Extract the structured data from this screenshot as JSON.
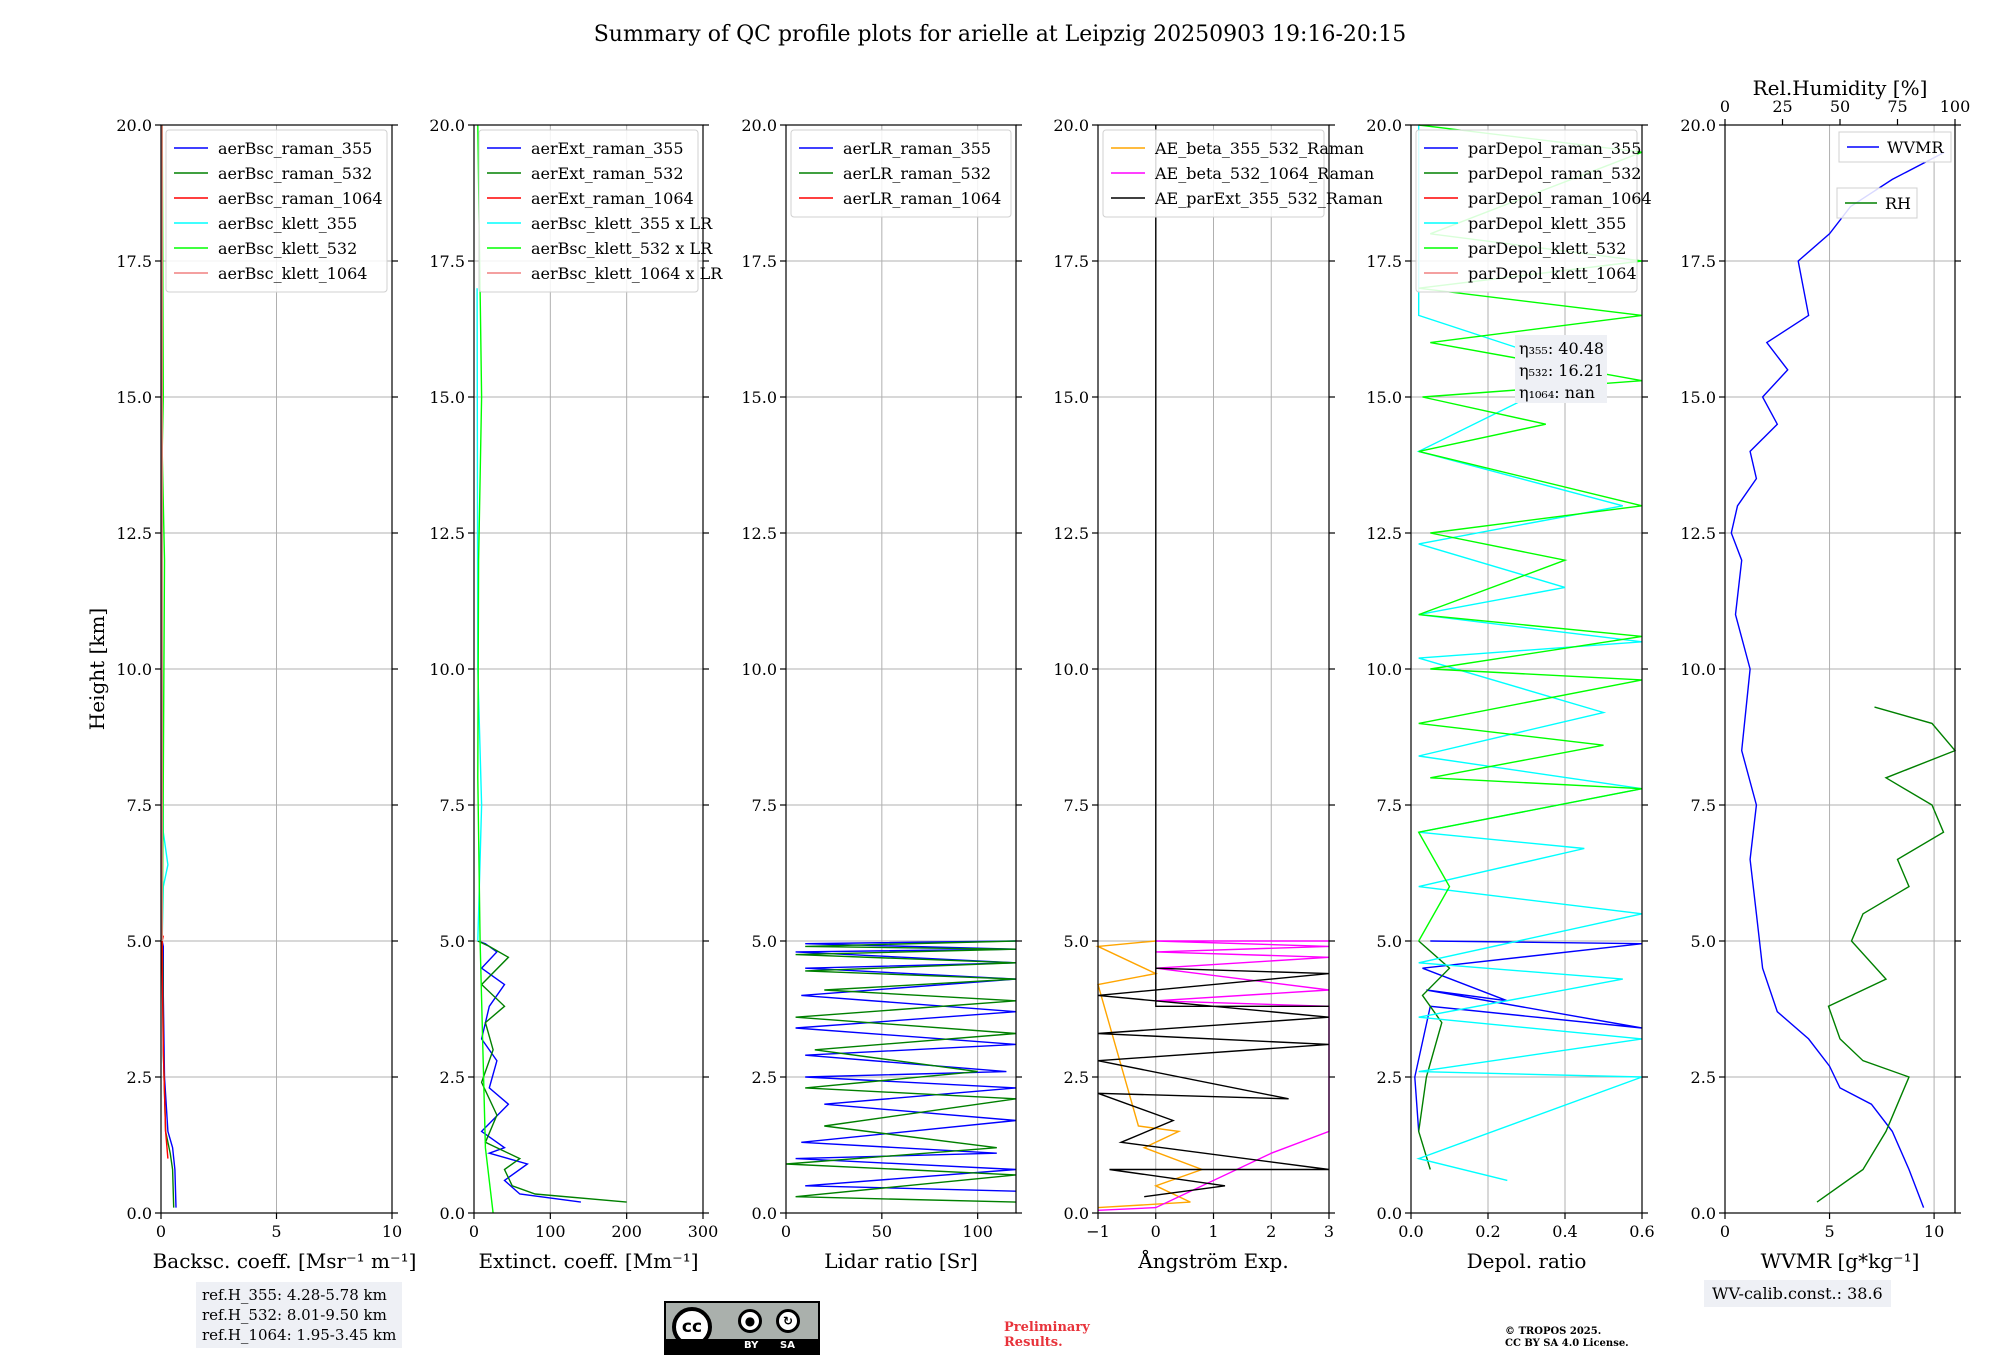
{
  "title": "Summary of QC profile plots for arielle at Leipzig 20250903 19:16-20:15",
  "ylabel": "Height [km]",
  "ytick_labels": [
    "0.0",
    "2.5",
    "5.0",
    "7.5",
    "10.0",
    "12.5",
    "15.0",
    "17.5",
    "20.0"
  ],
  "ref_heights": [
    "ref.H_355: 4.28-5.78 km",
    "ref.H_532: 8.01-9.50 km",
    "ref.H_1064: 1.95-3.45 km"
  ],
  "wv_calib": "WV-calib.const.: 38.6",
  "preliminary": [
    "Preliminary",
    "Results."
  ],
  "copyright": [
    "© TROPOS 2025.",
    "CC BY SA 4.0 License."
  ],
  "license_badge": {
    "by": "BY",
    "sa": "SA",
    "cc": "cc"
  },
  "colors": {
    "blue": "#0000ff",
    "green": "#008000",
    "red": "#ff0000",
    "cyan": "#00ffff",
    "lime": "#00ff00",
    "salmon": "#f08080",
    "orange": "#ffa500",
    "magenta": "#ff00ff",
    "black": "#000000"
  },
  "chart_data": [
    {
      "type": "line",
      "id": "bsc",
      "xlabel": "Backsc. coeff. [Msr⁻¹ m⁻¹]",
      "xlim": [
        0,
        10
      ],
      "ylim": [
        0,
        20
      ],
      "xticks": [
        0,
        5,
        10
      ],
      "xtick_labels": [
        "0",
        "5",
        "10"
      ],
      "legend": [
        {
          "name": "aerBsc_raman_355",
          "color": "blue"
        },
        {
          "name": "aerBsc_raman_532",
          "color": "green"
        },
        {
          "name": "aerBsc_raman_1064",
          "color": "red"
        },
        {
          "name": "aerBsc_klett_355",
          "color": "cyan"
        },
        {
          "name": "aerBsc_klett_532",
          "color": "lime"
        },
        {
          "name": "aerBsc_klett_1064",
          "color": "salmon"
        }
      ],
      "series": [
        {
          "name": "aerBsc_raman_355",
          "color": "blue",
          "x": [
            0.65,
            0.6,
            0.5,
            0.3,
            0.15,
            0.1,
            0.1,
            0.05
          ],
          "y": [
            0.1,
            0.8,
            1.2,
            1.5,
            2.5,
            4,
            4.9,
            5
          ]
        },
        {
          "name": "aerBsc_raman_532",
          "color": "green",
          "x": [
            0.55,
            0.5,
            0.4,
            0.2,
            0.1,
            0.08,
            0.05
          ],
          "y": [
            0.1,
            0.8,
            1.1,
            1.5,
            3,
            4.5,
            5
          ]
        },
        {
          "name": "aerBsc_raman_1064",
          "color": "red",
          "x": [
            0.3,
            0.2,
            0.1,
            0.05,
            0.05,
            0.1
          ],
          "y": [
            1.0,
            1.5,
            3,
            4.5,
            5,
            5.1
          ]
        },
        {
          "name": "aerBsc_klett_355",
          "color": "cyan",
          "x": [
            0.05,
            0.1,
            0.3,
            0.1,
            0.05,
            0.05
          ],
          "y": [
            5,
            6,
            6.4,
            7,
            10,
            20
          ]
        },
        {
          "name": "aerBsc_klett_532",
          "color": "lime",
          "x": [
            0.05,
            0.1,
            0.15,
            0.05,
            0.1,
            0.05
          ],
          "y": [
            5,
            8,
            12,
            14,
            15,
            20
          ]
        },
        {
          "name": "aerBsc_klett_1064",
          "color": "salmon",
          "x": [
            0.05,
            0.05
          ],
          "y": [
            5,
            20
          ]
        }
      ]
    },
    {
      "type": "line",
      "id": "ext",
      "xlabel": "Extinct. coeff. [Mm⁻¹]",
      "xlim": [
        0,
        300
      ],
      "ylim": [
        0,
        20
      ],
      "xticks": [
        0,
        100,
        200,
        300
      ],
      "xtick_labels": [
        "0",
        "100",
        "200",
        "300"
      ],
      "legend": [
        {
          "name": "aerExt_raman_355",
          "color": "blue"
        },
        {
          "name": "aerExt_raman_532",
          "color": "green"
        },
        {
          "name": "aerExt_raman_1064",
          "color": "red"
        },
        {
          "name": "aerBsc_klett_355 x LR",
          "color": "cyan"
        },
        {
          "name": "aerBsc_klett_532 x LR",
          "color": "lime"
        },
        {
          "name": "aerBsc_klett_1064 x LR",
          "color": "salmon"
        }
      ],
      "series": [
        {
          "name": "aerExt_raman_355",
          "color": "blue",
          "x": [
            140,
            60,
            40,
            70,
            20,
            40,
            10,
            45,
            20,
            30,
            10,
            20,
            40,
            10,
            30,
            15,
            5
          ],
          "y": [
            0.2,
            0.35,
            0.6,
            0.9,
            1.1,
            1.2,
            1.5,
            2.0,
            2.3,
            2.8,
            3.2,
            3.8,
            4.2,
            4.5,
            4.8,
            4.95,
            5
          ]
        },
        {
          "name": "aerExt_raman_532",
          "color": "green",
          "x": [
            200,
            80,
            50,
            40,
            60,
            15,
            30,
            10,
            25,
            15,
            40,
            10,
            45,
            20,
            5
          ],
          "y": [
            0.2,
            0.35,
            0.5,
            0.8,
            1.0,
            1.3,
            1.8,
            2.4,
            3.0,
            3.5,
            3.8,
            4.2,
            4.7,
            4.9,
            5
          ]
        },
        {
          "name": "aerBsc_klett_355 x LR",
          "color": "cyan",
          "x": [
            5,
            8,
            10,
            5,
            4
          ],
          "y": [
            5,
            6.5,
            7.5,
            10,
            17
          ]
        },
        {
          "name": "aerBsc_klett_532 x LR",
          "color": "lime",
          "x": [
            25,
            15,
            8,
            5,
            6,
            10,
            5
          ],
          "y": [
            0,
            1.2,
            5,
            8,
            12,
            15,
            20
          ]
        }
      ]
    },
    {
      "type": "line",
      "id": "lr",
      "xlabel": "Lidar ratio [Sr]",
      "xlim": [
        0,
        120
      ],
      "ylim": [
        0,
        20
      ],
      "xticks": [
        0,
        50,
        100
      ],
      "xtick_labels": [
        "0",
        "50",
        "100"
      ],
      "legend": [
        {
          "name": "aerLR_raman_355",
          "color": "blue"
        },
        {
          "name": "aerLR_raman_532",
          "color": "green"
        },
        {
          "name": "aerLR_raman_1064",
          "color": "red"
        }
      ],
      "series": [
        {
          "name": "aerLR_raman_355",
          "color": "blue",
          "x": [
            120,
            10,
            120,
            5,
            110,
            8,
            120,
            20,
            120,
            10,
            115,
            10,
            120,
            5,
            120,
            8,
            120,
            10,
            120,
            5,
            120,
            10,
            120
          ],
          "y": [
            0.4,
            0.5,
            0.8,
            1.0,
            1.1,
            1.3,
            1.7,
            2.0,
            2.3,
            2.5,
            2.6,
            2.9,
            3.1,
            3.4,
            3.7,
            4.0,
            4.3,
            4.5,
            4.6,
            4.8,
            4.85,
            4.95,
            5.0
          ]
        },
        {
          "name": "aerLR_raman_532",
          "color": "green",
          "x": [
            120,
            5,
            120,
            0,
            110,
            20,
            120,
            10,
            100,
            15,
            120,
            5,
            120,
            20,
            120,
            10,
            120,
            5,
            120,
            10,
            120
          ],
          "y": [
            0.2,
            0.3,
            0.7,
            0.9,
            1.2,
            1.6,
            2.1,
            2.3,
            2.6,
            3.0,
            3.3,
            3.6,
            3.9,
            4.1,
            4.3,
            4.45,
            4.6,
            4.75,
            4.85,
            4.9,
            5.0
          ]
        }
      ]
    },
    {
      "type": "line",
      "id": "ae",
      "xlabel": "Ångström Exp.",
      "xlim": [
        -1,
        3
      ],
      "ylim": [
        0,
        20
      ],
      "xticks": [
        -1,
        0,
        1,
        2,
        3
      ],
      "xtick_labels": [
        "−1",
        "0",
        "1",
        "2",
        "3"
      ],
      "legend": [
        {
          "name": "AE_beta_355_532_Raman",
          "color": "orange"
        },
        {
          "name": "AE_beta_532_1064_Raman",
          "color": "magenta"
        },
        {
          "name": "AE_parExt_355_532_Raman",
          "color": "black"
        }
      ],
      "series": [
        {
          "name": "AE_beta_355_532_Raman",
          "color": "orange",
          "x": [
            -1,
            0.6,
            0,
            0.8,
            -0.2,
            0.4,
            -0.3,
            -1,
            0,
            -1,
            0
          ],
          "y": [
            0.1,
            0.2,
            0.5,
            0.8,
            1.2,
            1.5,
            1.6,
            4.2,
            4.4,
            4.9,
            5.0
          ]
        },
        {
          "name": "AE_beta_532_1064_Raman",
          "color": "magenta",
          "x": [
            -1,
            0,
            2,
            3,
            3,
            0,
            3,
            0,
            3,
            0,
            3,
            0,
            3
          ],
          "y": [
            0.05,
            0.1,
            1.1,
            1.5,
            3.8,
            3.9,
            4.1,
            4.5,
            4.7,
            4.8,
            4.9,
            5.0,
            5.0
          ]
        },
        {
          "name": "AE_parExt_355_532_Raman",
          "color": "black",
          "x": [
            -0.2,
            1.2,
            -0.8,
            3,
            -0.6,
            0.3,
            -1,
            2.3,
            -1,
            3,
            -1,
            3,
            -1,
            3,
            0,
            0,
            3,
            0,
            0
          ],
          "y": [
            0.3,
            0.5,
            0.8,
            0.8,
            1.3,
            1.7,
            2.2,
            2.1,
            2.8,
            3.1,
            3.3,
            3.6,
            4.0,
            4.4,
            4.5,
            3.8,
            3.8,
            3.8,
            20
          ]
        }
      ]
    },
    {
      "type": "line",
      "id": "dep",
      "xlabel": "Depol. ratio",
      "xlim": [
        0,
        0.6
      ],
      "ylim": [
        0,
        20
      ],
      "xticks": [
        0,
        0.2,
        0.4,
        0.6
      ],
      "xtick_labels": [
        "0.0",
        "0.2",
        "0.4",
        "0.6"
      ],
      "legend": [
        {
          "name": "parDepol_raman_355",
          "color": "blue"
        },
        {
          "name": "parDepol_raman_532",
          "color": "green"
        },
        {
          "name": "parDepol_raman_1064",
          "color": "red"
        },
        {
          "name": "parDepol_klett_355",
          "color": "cyan"
        },
        {
          "name": "parDepol_klett_532",
          "color": "lime"
        },
        {
          "name": "parDepol_klett_1064",
          "color": "salmon"
        }
      ],
      "annotation": [
        "η₃₅₅: 40.48",
        "η₅₃₂: 16.21",
        "η₁₀₆₄: nan"
      ],
      "series": [
        {
          "name": "parDepol_raman_355",
          "color": "blue",
          "x": [
            0.02,
            0.01,
            0.05,
            0.6,
            0.04,
            0.25,
            0.03,
            0.6,
            0.05
          ],
          "y": [
            1.5,
            2.5,
            3.8,
            3.4,
            4.1,
            3.9,
            4.5,
            4.95,
            5.0
          ]
        },
        {
          "name": "parDepol_raman_532",
          "color": "green",
          "x": [
            0.05,
            0.02,
            0.04,
            0.08,
            0.03,
            0.1,
            0.02
          ],
          "y": [
            0.8,
            1.5,
            2.5,
            3.5,
            4.0,
            4.5,
            5.0
          ]
        },
        {
          "name": "parDepol_klett_355",
          "color": "cyan",
          "x": [
            0.25,
            0.02,
            0.6,
            0.02,
            0.6,
            0.02,
            0.55,
            0.02,
            0.6,
            0.02,
            0.45,
            0.02,
            0.6,
            0.02,
            0.5,
            0.02,
            0.6,
            0.02,
            0.4,
            0.02,
            0.55,
            0.02,
            0.45,
            0.02,
            0.02
          ],
          "y": [
            0.6,
            1.0,
            2.5,
            2.6,
            3.2,
            3.6,
            4.3,
            4.6,
            5.5,
            6.0,
            6.7,
            7.0,
            7.8,
            8.4,
            9.2,
            10.2,
            10.5,
            11.0,
            11.5,
            12.3,
            13.0,
            14.0,
            15.5,
            16.5,
            20
          ]
        },
        {
          "name": "parDepol_klett_532",
          "color": "lime",
          "x": [
            0.02,
            0.1,
            0.02,
            0.6,
            0.05,
            0.5,
            0.02,
            0.6,
            0.05,
            0.6,
            0.02,
            0.4,
            0.05,
            0.6,
            0.02,
            0.35,
            0.03,
            0.6,
            0.05,
            0.6,
            0.02,
            0.6,
            0.05,
            0.6,
            0.02
          ],
          "y": [
            5,
            6,
            7,
            7.8,
            8,
            8.6,
            9,
            9.8,
            10,
            10.6,
            11,
            12,
            12.5,
            13,
            14,
            14.5,
            15,
            15.3,
            16,
            16.5,
            17,
            17.5,
            18,
            19.5,
            20
          ]
        }
      ]
    },
    {
      "type": "line",
      "id": "wv",
      "xlabel": "WVMR [g*kg⁻¹]",
      "xlim": [
        0,
        11
      ],
      "ylim": [
        0,
        20
      ],
      "xticks": [
        0,
        5,
        10
      ],
      "xtick_labels": [
        "0",
        "5",
        "10"
      ],
      "x2label": "Rel.Humidity [%]",
      "x2lim": [
        0,
        100
      ],
      "x2ticks": [
        0,
        25,
        50,
        75,
        100
      ],
      "x2tick_labels": [
        "0",
        "25",
        "50",
        "75",
        "100"
      ],
      "legend": [
        {
          "name": "WVMR",
          "color": "blue"
        },
        {
          "name": "RH",
          "color": "green"
        }
      ],
      "series": [
        {
          "name": "WVMR",
          "color": "blue",
          "axis": "x",
          "x": [
            9.5,
            8.8,
            8,
            7,
            5.5,
            5,
            4,
            2.5,
            1.8,
            1.5,
            1.2,
            1.5,
            0.8,
            1.2,
            0.5,
            0.8,
            0.3,
            0.6,
            1.5,
            1.2,
            2.5,
            1.8,
            3,
            2,
            4,
            3.5,
            5,
            6,
            8,
            10.5
          ],
          "y": [
            0.1,
            0.8,
            1.5,
            2.0,
            2.3,
            2.7,
            3.2,
            3.7,
            4.5,
            5.5,
            6.5,
            7.5,
            8.5,
            10.0,
            11.0,
            12.0,
            12.5,
            13.0,
            13.5,
            14.0,
            14.5,
            15.0,
            15.5,
            16.0,
            16.5,
            17.5,
            18.0,
            18.5,
            19.0,
            19.5
          ]
        },
        {
          "name": "RH",
          "color": "green",
          "axis": "x2",
          "x": [
            40,
            60,
            70,
            75,
            80,
            60,
            50,
            45,
            70,
            55,
            60,
            80,
            75,
            95,
            90,
            70,
            100,
            90,
            65
          ],
          "y": [
            0.2,
            0.8,
            1.5,
            2.0,
            2.5,
            2.8,
            3.2,
            3.8,
            4.3,
            5.0,
            5.5,
            6.0,
            6.5,
            7.0,
            7.5,
            8.0,
            8.5,
            9.0,
            9.3
          ]
        }
      ]
    }
  ]
}
